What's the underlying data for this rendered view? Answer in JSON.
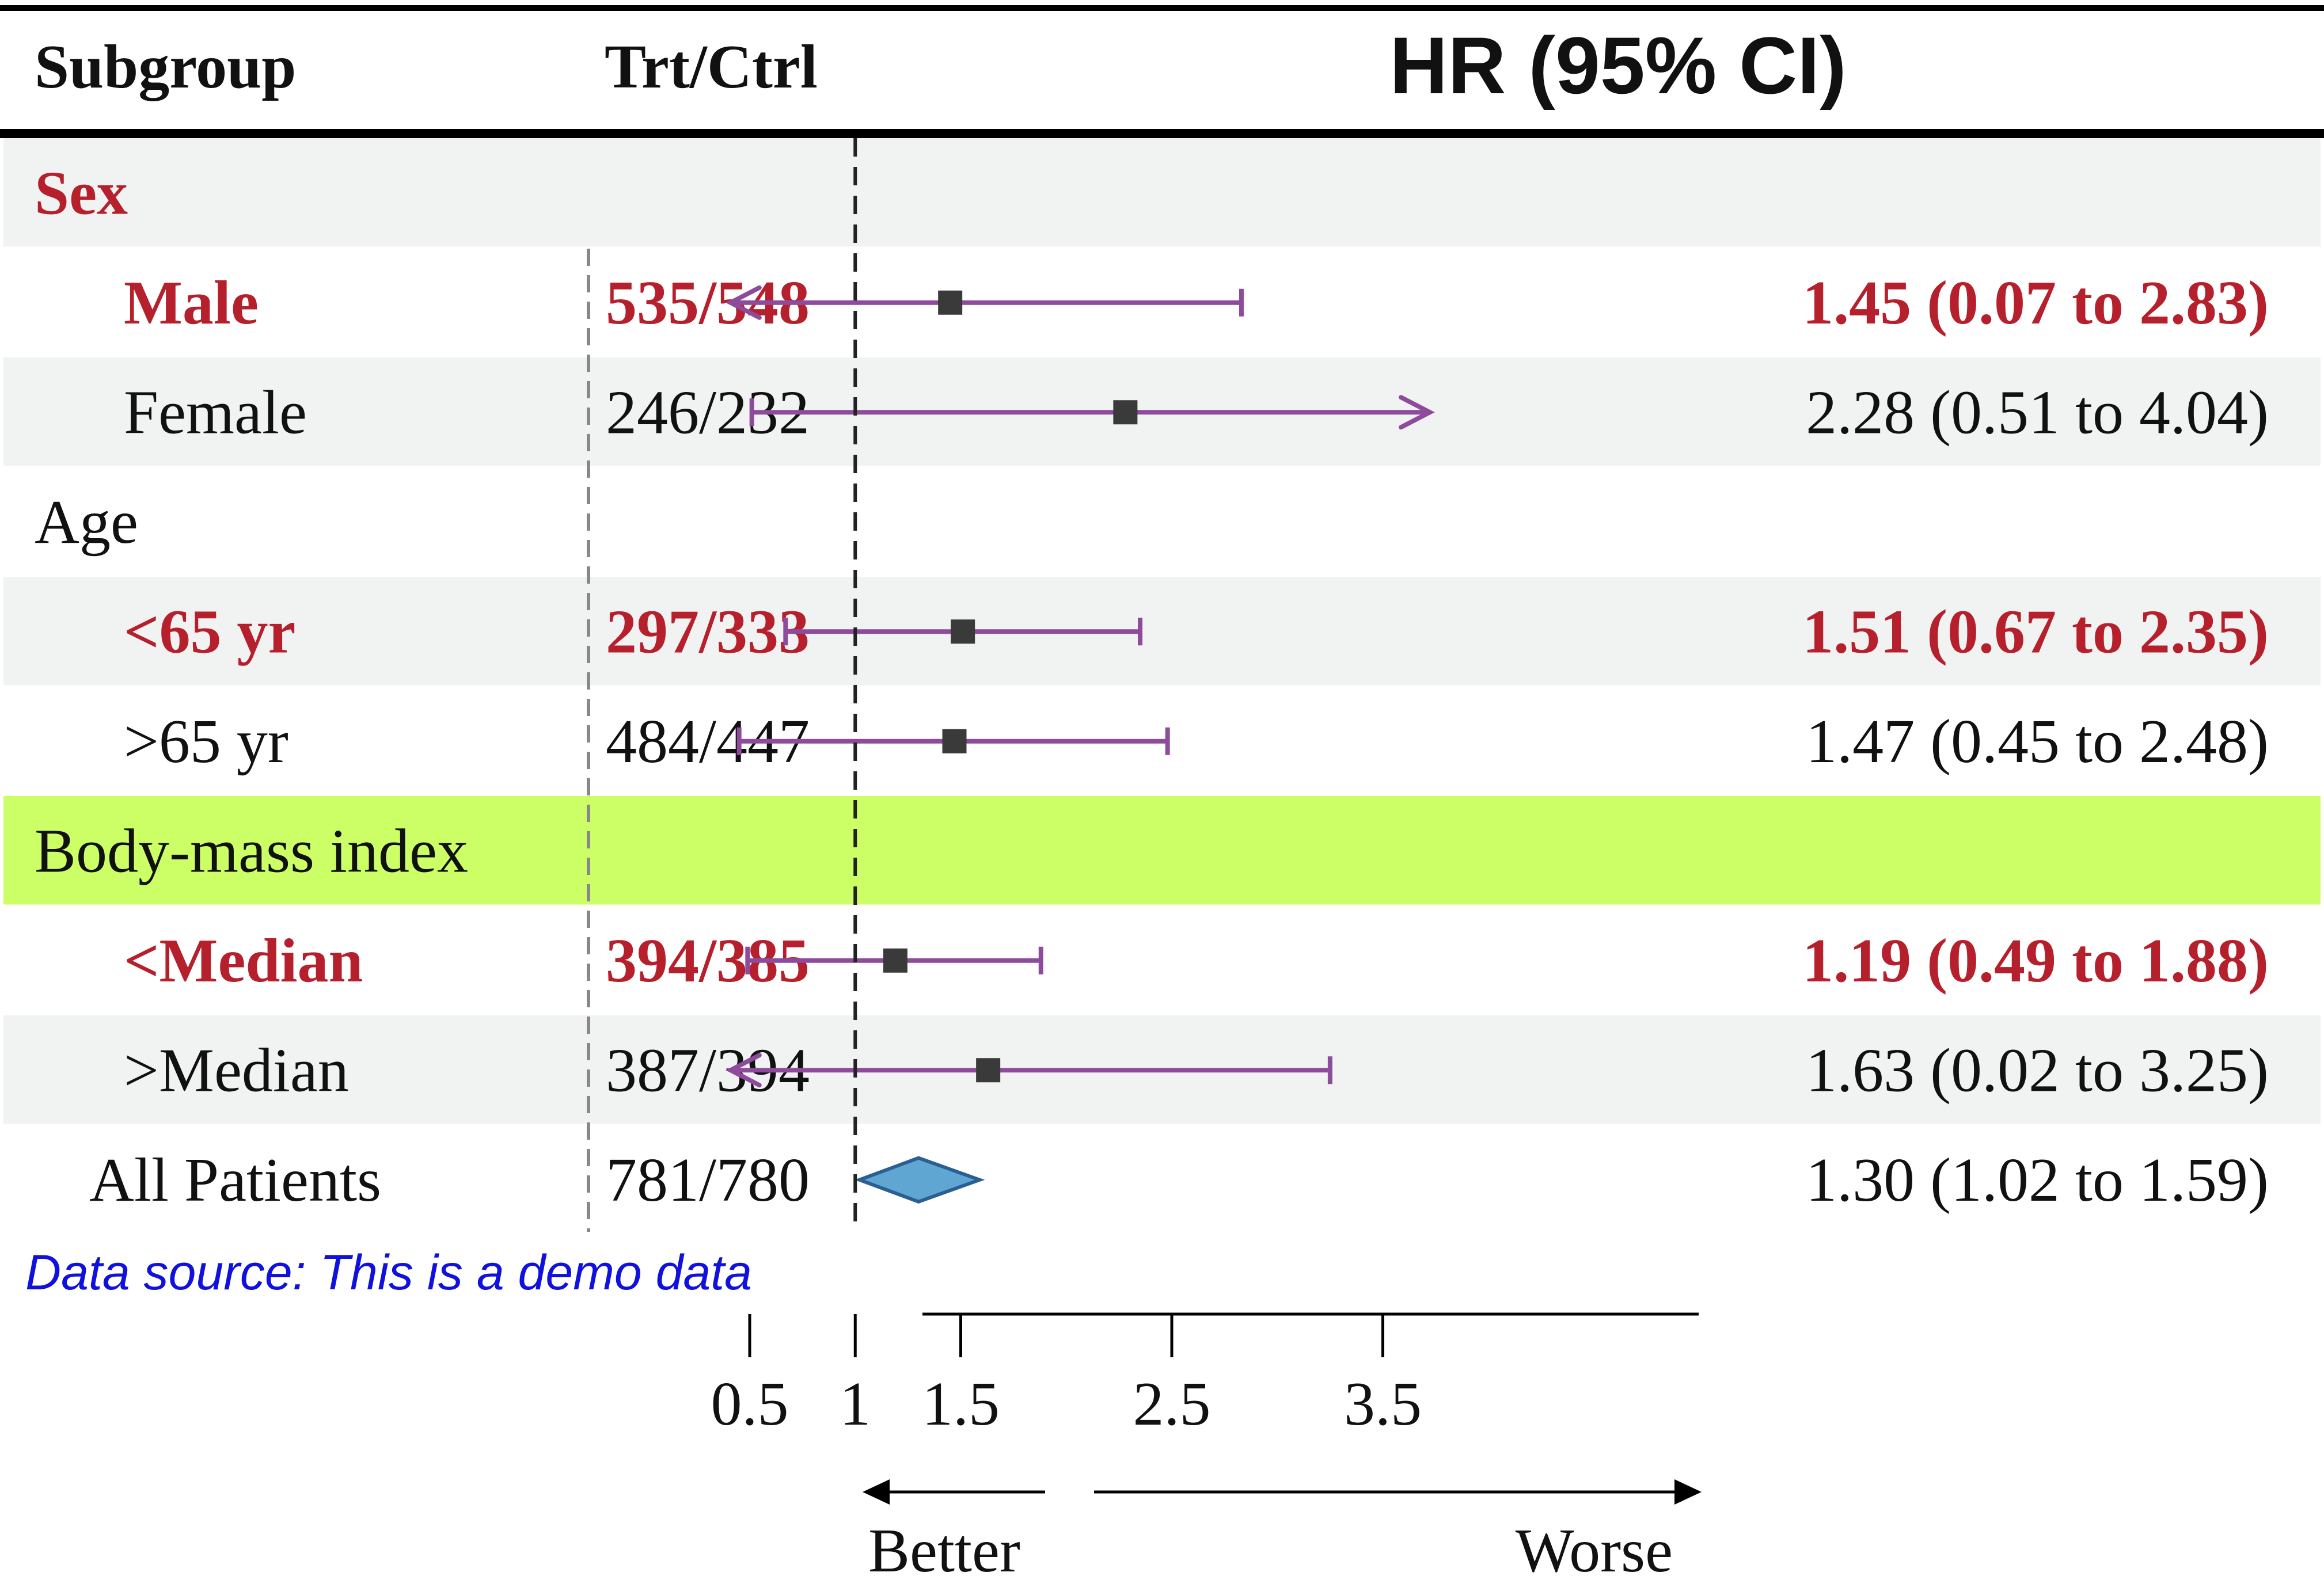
{
  "colors": {
    "highlight_red": "#b5202c",
    "normal_text": "#111111",
    "ci_line": "#8e4b9b",
    "point": "#3a3a3a",
    "diamond_fill": "#5fa6d2",
    "diamond_stroke": "#2b5f93",
    "band_grey": "#f1f3f3",
    "band_green": "#ccff66",
    "footnote": "#1111dd"
  },
  "header": {
    "subgroup_label": "Subgroup",
    "trt_ctrl_label": "Trt/Ctrl",
    "hr_label": "HR (95% CI)"
  },
  "footnote": "Data source: This is a demo data",
  "direction_labels": {
    "left": "Better",
    "right": "Worse"
  },
  "chart_data": {
    "type": "forest",
    "axis": {
      "ticks": [
        0.5,
        1,
        1.5,
        2.5,
        3.5
      ],
      "tick_labels": [
        "0.5",
        "1",
        "1.5",
        "2.5",
        "3.5"
      ],
      "range": [
        0.0,
        3.75
      ],
      "reference_line": 1
    },
    "rows": [
      {
        "label": "Sex",
        "kind": "group",
        "band": "grey",
        "highlight": true
      },
      {
        "label": "Male",
        "kind": "item",
        "band": "white",
        "highlight": true,
        "trt_ctrl": "535/548",
        "hr": 1.45,
        "lo": 0.07,
        "hi": 2.83,
        "hr_text": "1.45 (0.07 to 2.83)",
        "arrow_left": true,
        "arrow_right": false
      },
      {
        "label": "Female",
        "kind": "item",
        "band": "grey",
        "highlight": false,
        "trt_ctrl": "246/232",
        "hr": 2.28,
        "lo": 0.51,
        "hi": 4.04,
        "hr_text": "2.28 (0.51 to 4.04)",
        "arrow_left": false,
        "arrow_right": true
      },
      {
        "label": "Age",
        "kind": "group",
        "band": "white",
        "highlight": false
      },
      {
        "label": "<65 yr",
        "kind": "item",
        "band": "grey",
        "highlight": true,
        "trt_ctrl": "297/333",
        "hr": 1.51,
        "lo": 0.67,
        "hi": 2.35,
        "hr_text": "1.51 (0.67 to 2.35)",
        "arrow_left": false,
        "arrow_right": false
      },
      {
        "label": ">65 yr",
        "kind": "item",
        "band": "white",
        "highlight": false,
        "trt_ctrl": "484/447",
        "hr": 1.47,
        "lo": 0.45,
        "hi": 2.48,
        "hr_text": "1.47 (0.45 to 2.48)",
        "arrow_left": false,
        "arrow_right": false
      },
      {
        "label": "Body-mass index",
        "kind": "group",
        "band": "green",
        "highlight": false
      },
      {
        "label": "<Median",
        "kind": "item",
        "band": "white",
        "highlight": true,
        "trt_ctrl": "394/385",
        "hr": 1.19,
        "lo": 0.49,
        "hi": 1.88,
        "hr_text": "1.19 (0.49 to 1.88)",
        "arrow_left": false,
        "arrow_right": false
      },
      {
        "label": ">Median",
        "kind": "item",
        "band": "grey",
        "highlight": false,
        "trt_ctrl": "387/394",
        "hr": 1.63,
        "lo": 0.02,
        "hi": 3.25,
        "hr_text": "1.63 (0.02 to 3.25)",
        "arrow_left": true,
        "arrow_right": false
      },
      {
        "label": "All Patients",
        "kind": "overall",
        "band": "white",
        "highlight": false,
        "trt_ctrl": "781/780",
        "hr": 1.3,
        "lo": 1.02,
        "hi": 1.59,
        "hr_text": "1.30 (1.02 to 1.59)"
      }
    ]
  }
}
